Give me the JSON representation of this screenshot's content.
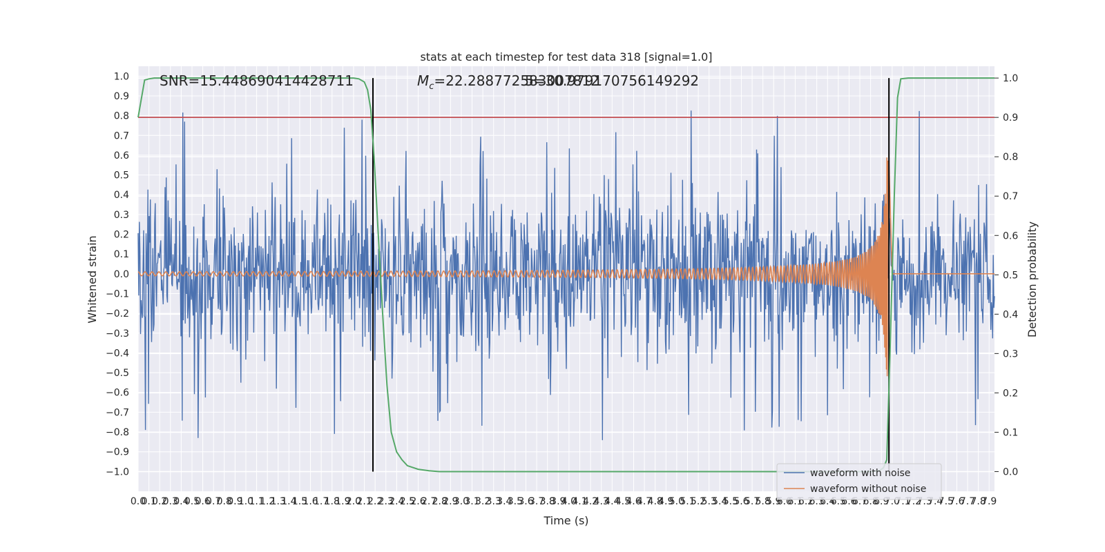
{
  "chart_data": {
    "type": "line",
    "title": "stats at each timestep for test data 318 [signal=1.0]",
    "xlabel": "Time (s)",
    "ylabel": "Whitened strain",
    "y2label": "Detection probability",
    "xlim": [
      0,
      7.95
    ],
    "ylim": [
      -1.1,
      1.05
    ],
    "y2lim": [
      -0.05,
      1.03
    ],
    "xticks": [
      "0.0",
      "0.1",
      "0.2",
      "0.3",
      "0.4",
      "0.5",
      "0.6",
      "0.7",
      "0.8",
      "0.9",
      "1.0",
      "1.1",
      "1.2",
      "1.3",
      "1.4",
      "1.5",
      "1.6",
      "1.7",
      "1.8",
      "1.9",
      "2.0",
      "2.1",
      "2.2",
      "2.3",
      "2.4",
      "2.5",
      "2.6",
      "2.7",
      "2.8",
      "2.9",
      "3.0",
      "3.1",
      "3.2",
      "3.3",
      "3.4",
      "3.5",
      "3.6",
      "3.7",
      "3.8",
      "3.9",
      "4.0",
      "4.1",
      "4.2",
      "4.3",
      "4.4",
      "4.5",
      "4.6",
      "4.7",
      "4.8",
      "4.9",
      "5.0",
      "5.1",
      "5.2",
      "5.3",
      "5.4",
      "5.5",
      "5.6",
      "5.7",
      "5.8",
      "5.9",
      "6.0",
      "6.1",
      "6.2",
      "6.3",
      "6.4",
      "6.5",
      "6.6",
      "6.7",
      "6.8",
      "6.9",
      "7.0",
      "7.1",
      "7.2",
      "7.3",
      "7.4",
      "7.5",
      "7.6",
      "7.7",
      "7.8",
      "7.9"
    ],
    "yticks": [
      "1.0",
      "0.9",
      "0.8",
      "0.7",
      "0.6",
      "0.5",
      "0.4",
      "0.3",
      "0.2",
      "0.1",
      "0.0",
      "−0.1",
      "−0.2",
      "−0.3",
      "−0.4",
      "−0.5",
      "−0.6",
      "−0.7",
      "−0.8",
      "−0.9",
      "−1.0"
    ],
    "y2ticks": [
      "1.0",
      "0.9",
      "0.8",
      "0.7",
      "0.6",
      "0.5",
      "0.4",
      "0.3",
      "0.2",
      "0.1",
      "0.0"
    ],
    "annotations": {
      "snr": "SNR=15.448690414428711",
      "mc_symbol": "M",
      "mc_sub": "c",
      "mc_value": "=22.288772583007812",
      "overlap": "5=30.979170756149292"
    },
    "series": [
      {
        "name": "waveform with noise",
        "color": "#4c72b0",
        "envelope_max": 0.89,
        "envelope_min": -0.96,
        "typical_abs": 0.4
      },
      {
        "name": "waveform without noise",
        "color": "#dd8452",
        "start_amplitude": 0.01,
        "peak_time": 6.97,
        "peak_max": 0.64,
        "peak_min": -0.66,
        "end_time": 7.0
      },
      {
        "color": "#55a868",
        "axis": "y2",
        "x": [
          0.0,
          0.06,
          0.1,
          0.15,
          0.3,
          1.5,
          2.0,
          2.05,
          2.1,
          2.13,
          2.16,
          2.19,
          2.23,
          2.27,
          2.31,
          2.35,
          2.4,
          2.45,
          2.5,
          2.6,
          2.7,
          2.8,
          3.0,
          6.8,
          6.88,
          6.92,
          6.95,
          6.98,
          7.02,
          7.05,
          7.08,
          7.15,
          7.95
        ],
        "y": [
          0.9,
          0.995,
          0.998,
          1.0,
          1.0,
          1.0,
          1.0,
          0.998,
          0.99,
          0.97,
          0.92,
          0.8,
          0.6,
          0.4,
          0.22,
          0.1,
          0.05,
          0.03,
          0.015,
          0.006,
          0.002,
          0.0,
          0.0,
          0.0,
          0.002,
          0.01,
          0.03,
          0.3,
          0.7,
          0.95,
          0.998,
          1.0,
          1.0
        ]
      }
    ],
    "threshold": {
      "value": 0.9,
      "axis": "y2",
      "color": "#c44e52"
    },
    "vlines": [
      {
        "x": 2.18,
        "color": "#000000"
      },
      {
        "x": 6.97,
        "color": "#000000"
      }
    ],
    "grid": true,
    "legend": "bottom-right",
    "legend_entries": [
      "waveform with noise",
      "waveform without noise"
    ]
  }
}
